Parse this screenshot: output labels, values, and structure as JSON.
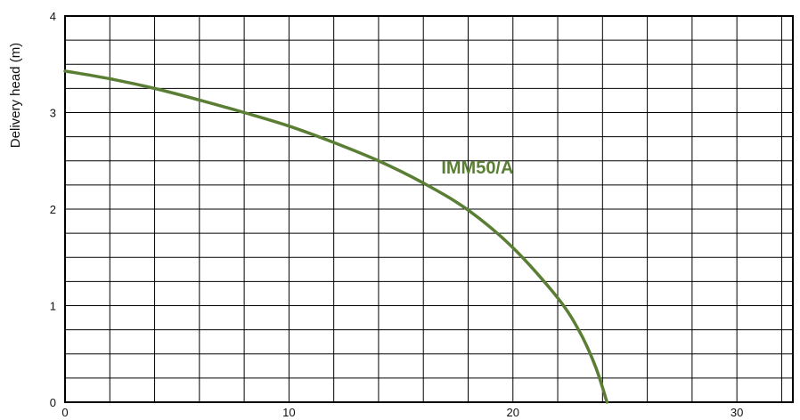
{
  "chart_data": {
    "type": "line",
    "title": "",
    "xlabel": "",
    "ylabel": "Delivery head (m)",
    "xlim": [
      0,
      32.5
    ],
    "ylim": [
      0,
      4
    ],
    "x_ticks": [
      0,
      10,
      20,
      30
    ],
    "x_tick_labels": [
      "0",
      "10",
      "20",
      "30"
    ],
    "y_ticks": [
      0,
      1,
      2,
      3,
      4
    ],
    "y_tick_labels": [
      "0",
      "1",
      "2",
      "3",
      "4"
    ],
    "grid": true,
    "x_grid_step": 2,
    "y_grid_step": 0.25,
    "series": [
      {
        "name": "IMM50/A",
        "color": "#5b7e35",
        "x": [
          0,
          2,
          4,
          6,
          8,
          10,
          12,
          14,
          16,
          18,
          20,
          22,
          23,
          23.7,
          24.2
        ],
        "y": [
          3.43,
          3.35,
          3.25,
          3.13,
          3.0,
          2.86,
          2.69,
          2.5,
          2.27,
          1.99,
          1.6,
          1.08,
          0.72,
          0.36,
          0
        ]
      }
    ]
  }
}
